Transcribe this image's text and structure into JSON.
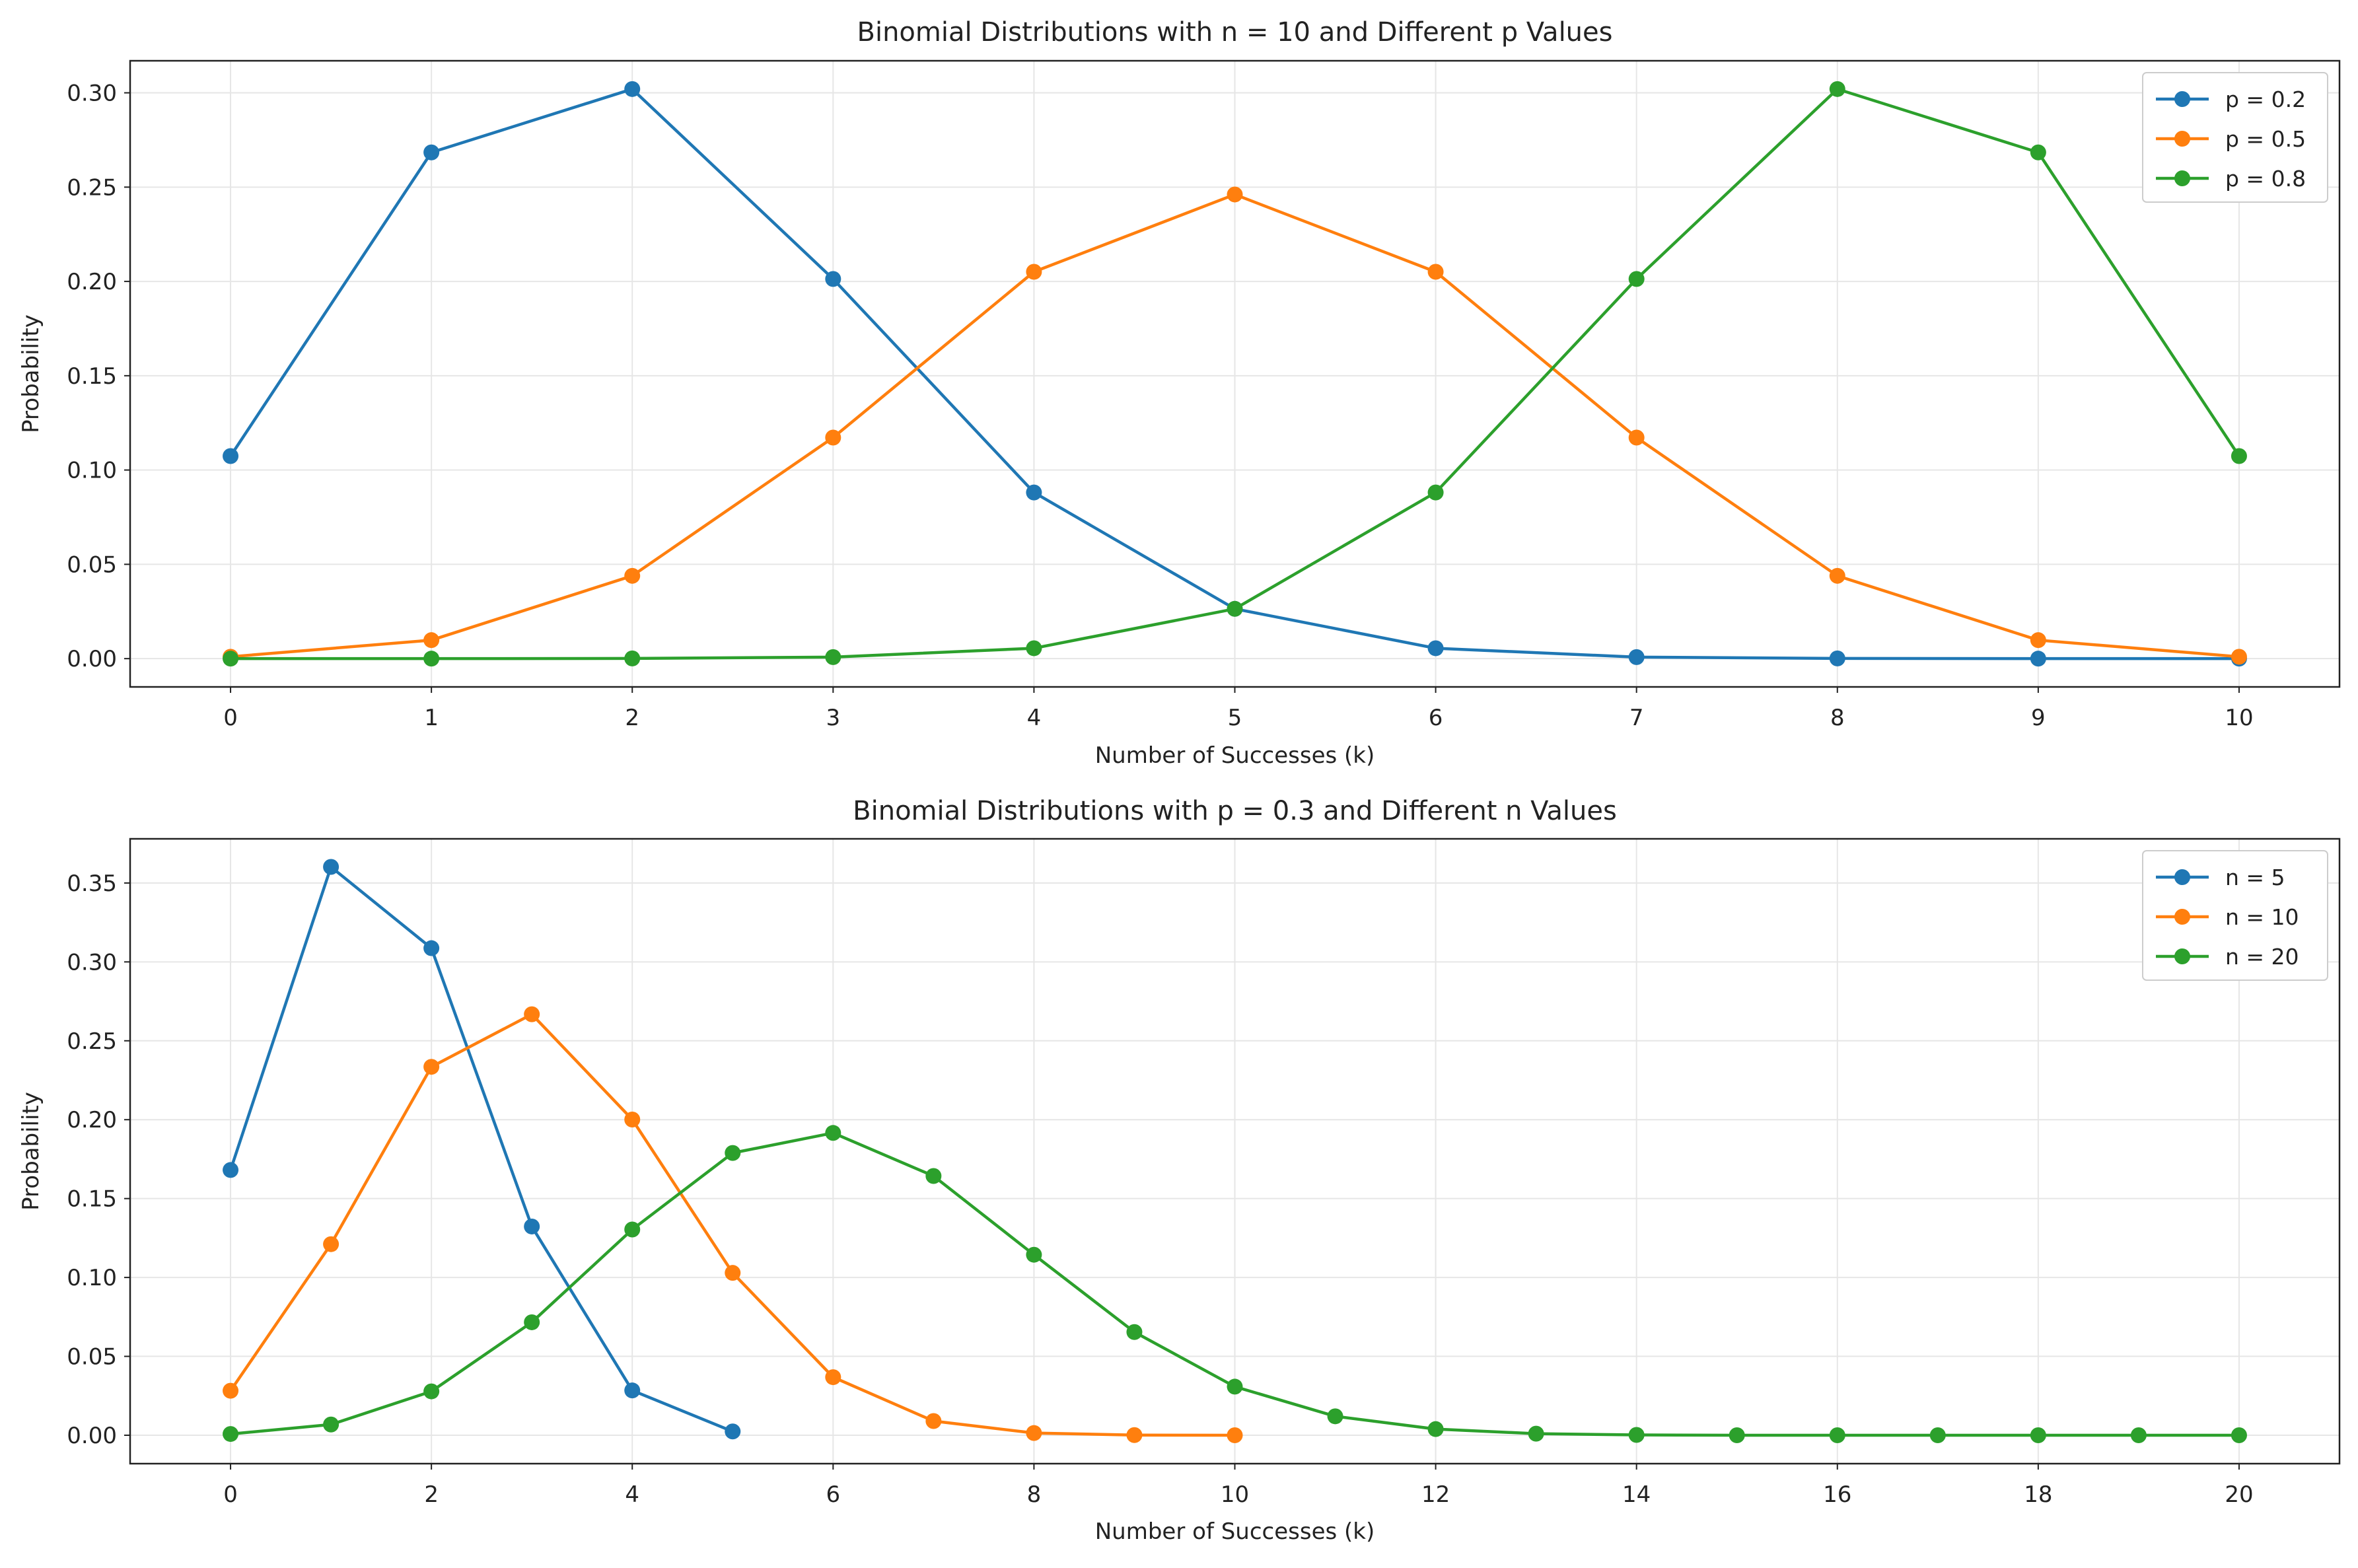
{
  "chart_data": [
    {
      "type": "line",
      "title": "Binomial Distributions with n = 10 and Different p Values",
      "xlabel": "Number of Successes (k)",
      "ylabel": "Probability",
      "xlim": [
        -0.5,
        10.5
      ],
      "ylim": [
        -0.015,
        0.317
      ],
      "xticks": [
        0,
        1,
        2,
        3,
        4,
        5,
        6,
        7,
        8,
        9,
        10
      ],
      "xtick_labels": [
        "0",
        "1",
        "2",
        "3",
        "4",
        "5",
        "6",
        "7",
        "8",
        "9",
        "10"
      ],
      "yticks": [
        0.0,
        0.05,
        0.1,
        0.15,
        0.2,
        0.25,
        0.3
      ],
      "ytick_labels": [
        "0.00",
        "0.05",
        "0.10",
        "0.15",
        "0.20",
        "0.25",
        "0.30"
      ],
      "grid": true,
      "legend_position": "top-right",
      "series": [
        {
          "name": "p = 0.2",
          "color": "#1f77b4",
          "x": [
            0,
            1,
            2,
            3,
            4,
            5,
            6,
            7,
            8,
            9,
            10
          ],
          "values": [
            0.1074,
            0.2684,
            0.302,
            0.2013,
            0.0881,
            0.0264,
            0.0055,
            0.0008,
            0.0001,
            0.0,
            0.0
          ]
        },
        {
          "name": "p = 0.5",
          "color": "#ff7f0e",
          "x": [
            0,
            1,
            2,
            3,
            4,
            5,
            6,
            7,
            8,
            9,
            10
          ],
          "values": [
            0.001,
            0.0098,
            0.0439,
            0.1172,
            0.2051,
            0.2461,
            0.2051,
            0.1172,
            0.0439,
            0.0098,
            0.001
          ]
        },
        {
          "name": "p = 0.8",
          "color": "#2ca02c",
          "x": [
            0,
            1,
            2,
            3,
            4,
            5,
            6,
            7,
            8,
            9,
            10
          ],
          "values": [
            0.0,
            0.0,
            0.0001,
            0.0008,
            0.0055,
            0.0264,
            0.0881,
            0.2013,
            0.302,
            0.2684,
            0.1074
          ]
        }
      ]
    },
    {
      "type": "line",
      "title": "Binomial Distributions with p = 0.3 and Different n Values",
      "xlabel": "Number of Successes (k)",
      "ylabel": "Probability",
      "xlim": [
        -1,
        21
      ],
      "ylim": [
        -0.018,
        0.378
      ],
      "xticks": [
        0,
        2,
        4,
        6,
        8,
        10,
        12,
        14,
        16,
        18,
        20
      ],
      "xtick_labels": [
        "0",
        "2",
        "4",
        "6",
        "8",
        "10",
        "12",
        "14",
        "16",
        "18",
        "20"
      ],
      "yticks": [
        0.0,
        0.05,
        0.1,
        0.15,
        0.2,
        0.25,
        0.3,
        0.35
      ],
      "ytick_labels": [
        "0.00",
        "0.05",
        "0.10",
        "0.15",
        "0.20",
        "0.25",
        "0.30",
        "0.35"
      ],
      "grid": true,
      "legend_position": "top-right",
      "series": [
        {
          "name": "n = 5",
          "color": "#1f77b4",
          "x": [
            0,
            1,
            2,
            3,
            4,
            5
          ],
          "values": [
            0.1681,
            0.3602,
            0.3087,
            0.1323,
            0.0284,
            0.0024
          ]
        },
        {
          "name": "n = 10",
          "color": "#ff7f0e",
          "x": [
            0,
            1,
            2,
            3,
            4,
            5,
            6,
            7,
            8,
            9,
            10
          ],
          "values": [
            0.0282,
            0.1211,
            0.2335,
            0.2668,
            0.2001,
            0.1029,
            0.0368,
            0.009,
            0.0014,
            0.0001,
            0.0
          ]
        },
        {
          "name": "n = 20",
          "color": "#2ca02c",
          "x": [
            0,
            1,
            2,
            3,
            4,
            5,
            6,
            7,
            8,
            9,
            10,
            11,
            12,
            13,
            14,
            15,
            16,
            17,
            18,
            19,
            20
          ],
          "values": [
            0.0008,
            0.0068,
            0.0278,
            0.0716,
            0.1304,
            0.1789,
            0.1916,
            0.1643,
            0.1144,
            0.0654,
            0.0308,
            0.012,
            0.0039,
            0.001,
            0.0002,
            0.0,
            0.0,
            0.0,
            0.0,
            0.0,
            0.0
          ]
        }
      ]
    }
  ]
}
